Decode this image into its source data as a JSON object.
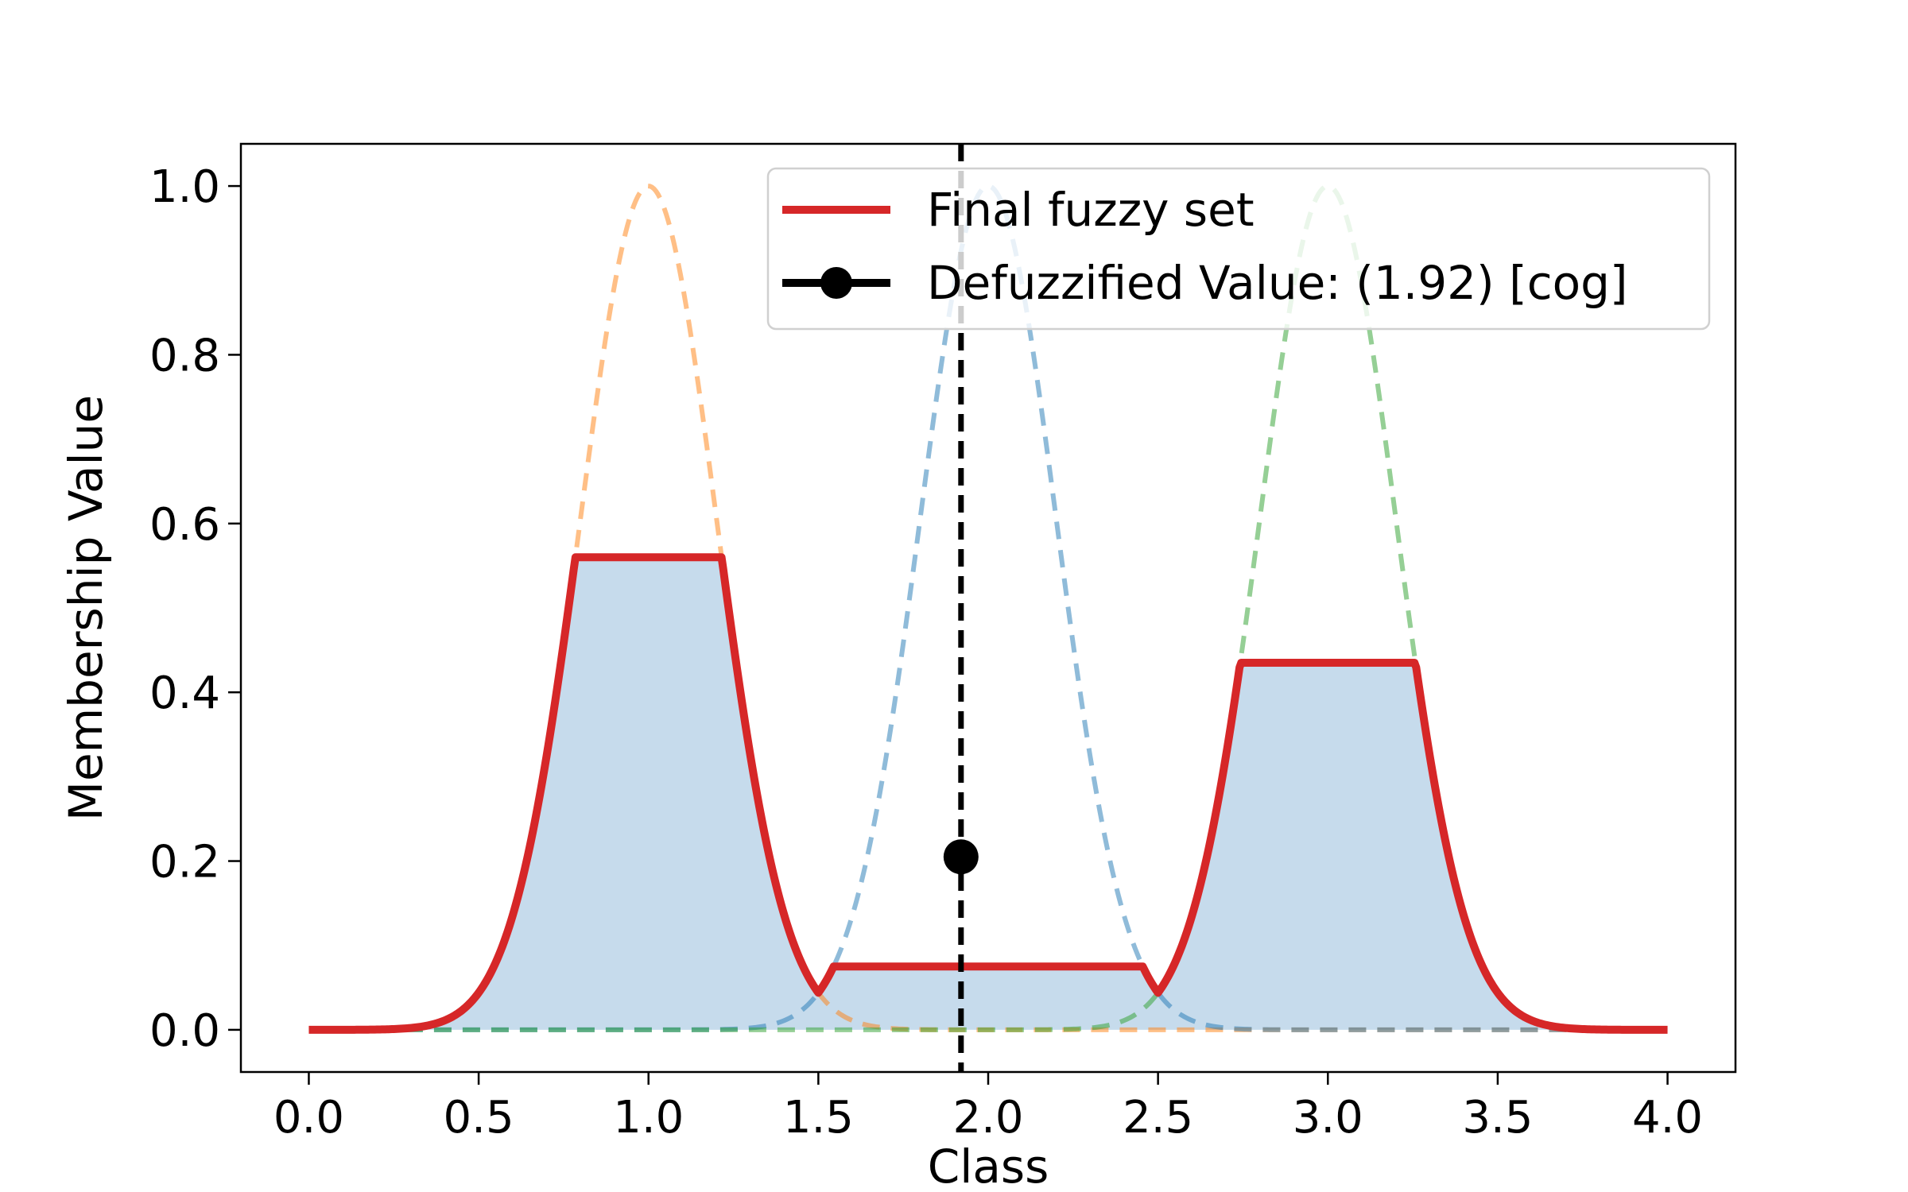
{
  "chart_data": {
    "type": "line",
    "title": "",
    "xlabel": "Class",
    "ylabel": "Membership Value",
    "xlim": [
      -0.2,
      4.2
    ],
    "ylim": [
      -0.05,
      1.05
    ],
    "x_ticks": [
      0.0,
      0.5,
      1.0,
      1.5,
      2.0,
      2.5,
      3.0,
      3.5,
      4.0
    ],
    "x_tick_labels": [
      "0.0",
      "0.5",
      "1.0",
      "1.5",
      "2.0",
      "2.5",
      "3.0",
      "3.5",
      "4.0"
    ],
    "y_ticks": [
      0.0,
      0.2,
      0.4,
      0.6,
      0.8,
      1.0
    ],
    "y_tick_labels": [
      "0.0",
      "0.2",
      "0.4",
      "0.6",
      "0.8",
      "1.0"
    ],
    "grid": false,
    "legend_position": "upper right",
    "membership_functions": [
      {
        "center": 1.0,
        "sigma": 0.2,
        "x_range": [
          0.2,
          3.8
        ],
        "clip_level": 0.56,
        "color": "#ff7f0e"
      },
      {
        "center": 2.0,
        "sigma": 0.2,
        "x_range": [
          0.2,
          3.8
        ],
        "clip_level": 0.075,
        "color": "#1f77b4"
      },
      {
        "center": 3.0,
        "sigma": 0.2,
        "x_range": [
          0.2,
          3.8
        ],
        "clip_level": 0.435,
        "color": "#2ca02c"
      }
    ],
    "series": [
      {
        "name": "Final fuzzy set",
        "color": "#d62728",
        "fill_color": "#c6dbec",
        "x_range": [
          0.0,
          4.0
        ],
        "shape": "max of clipped membership functions"
      },
      {
        "name": "Defuzzified Value: (1.92) [cog]",
        "color": "#000000",
        "x": 1.92,
        "y": 0.205
      }
    ]
  }
}
